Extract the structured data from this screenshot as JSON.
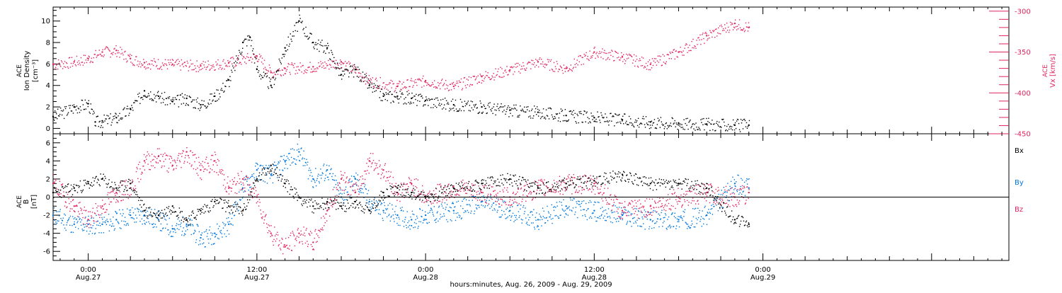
{
  "colors": {
    "black": "#000000",
    "pink": "#e0245e",
    "blue": "#0077dd"
  },
  "x_axis": {
    "label": "hours:minutes, Aug. 26, 2009 - Aug. 29, 2009",
    "start_hour": -2.5,
    "end_hour": 65.5,
    "ticks": [
      {
        "hour": 0,
        "time": "0:00",
        "date": "Aug.27"
      },
      {
        "hour": 12,
        "time": "12:00",
        "date": "Aug.27"
      },
      {
        "hour": 24,
        "time": "0:00",
        "date": "Aug.28"
      },
      {
        "hour": 36,
        "time": "12:00",
        "date": "Aug.28"
      },
      {
        "hour": 48,
        "time": "0:00",
        "date": "Aug.29"
      }
    ]
  },
  "panel1": {
    "ylabel_source": "ACE",
    "ylabel_name": "Ion Density",
    "ylabel_unit": "[cm⁻³]",
    "yticks": [
      "0",
      "2",
      "4",
      "6",
      "8",
      "10"
    ],
    "right_ylabel_source": "ACE",
    "right_ylabel_name": "Vx [km/s]",
    "right_yticks": [
      "-300",
      "-350",
      "-400",
      "-450"
    ]
  },
  "panel2": {
    "ylabel_source": "ACE",
    "ylabel_name": "B",
    "ylabel_unit": "[nT]",
    "yticks": [
      "6",
      "4",
      "2",
      "0",
      "-2",
      "-4",
      "-6"
    ],
    "legend": {
      "bx": "Bx",
      "by": "By",
      "bz": "Bz"
    }
  },
  "chart_data": [
    {
      "type": "scatter",
      "title": "",
      "xlabel": "hours:minutes, Aug. 26, 2009 - Aug. 29, 2009",
      "ylabel": "ACE Ion Density [cm⁻³]",
      "y2label": "ACE Vx [km/s]",
      "ylim": [
        -0.5,
        11.3
      ],
      "y2lim": [
        -450,
        -295
      ],
      "x_unit": "hours since Aug. 27 0:00",
      "series": [
        {
          "name": "Ion Density",
          "axis": "left",
          "color": "#000000",
          "x": [
            -2.5,
            -1,
            0,
            0.5,
            1,
            2,
            3,
            4,
            5,
            6,
            7,
            8,
            9,
            10,
            11,
            11.5,
            12,
            13,
            14,
            15,
            16,
            17,
            18,
            19,
            20,
            21,
            22,
            23,
            24,
            26,
            28,
            30,
            32,
            34,
            36,
            38,
            40,
            42,
            44,
            46,
            47
          ],
          "y": [
            1.1,
            2.0,
            2.3,
            0.6,
            0.7,
            1.0,
            1.8,
            3.5,
            3.0,
            2.5,
            2.8,
            2.2,
            3.0,
            4.5,
            8.0,
            8.5,
            5.5,
            4.0,
            7.5,
            10.0,
            8.0,
            7.5,
            5.0,
            5.5,
            4.0,
            3.0,
            3.0,
            2.8,
            2.6,
            2.2,
            2.0,
            1.7,
            1.5,
            1.2,
            1.0,
            0.8,
            0.6,
            0.5,
            0.4,
            0.3,
            0.3
          ]
        },
        {
          "name": "Vx",
          "axis": "right",
          "color": "#e0245e",
          "x": [
            -2.5,
            -1,
            0,
            1,
            2,
            3,
            4,
            6,
            8,
            10,
            12,
            13,
            14,
            16,
            18,
            20,
            22,
            24,
            26,
            28,
            30,
            32,
            34,
            36,
            38,
            40,
            42,
            44,
            46,
            47
          ],
          "y": [
            -365,
            -362,
            -358,
            -350,
            -348,
            -358,
            -363,
            -365,
            -367,
            -363,
            -355,
            -375,
            -370,
            -368,
            -362,
            -385,
            -392,
            -385,
            -392,
            -380,
            -372,
            -362,
            -370,
            -350,
            -356,
            -365,
            -350,
            -330,
            -315,
            -320
          ]
        }
      ]
    },
    {
      "type": "scatter",
      "title": "",
      "xlabel": "hours:minutes, Aug. 26, 2009 - Aug. 29, 2009",
      "ylabel": "ACE B [nT]",
      "ylim": [
        -7,
        7
      ],
      "x_unit": "hours since Aug. 27 0:00",
      "series": [
        {
          "name": "Bx",
          "color": "#000000",
          "x": [
            -2.5,
            -1,
            0,
            1,
            2,
            3,
            4,
            5,
            6,
            7,
            8,
            9,
            10,
            11,
            12,
            13,
            14,
            15,
            16,
            17,
            18,
            19,
            20,
            21,
            22,
            23,
            24,
            26,
            28,
            30,
            32,
            34,
            36,
            38,
            40,
            42,
            44,
            46,
            47
          ],
          "y": [
            0.5,
            1.0,
            1.5,
            2.0,
            1.0,
            1.5,
            -1.5,
            -2.0,
            -1.0,
            -2.5,
            -1.5,
            -0.5,
            -1.0,
            -1.5,
            2.0,
            3.5,
            1.5,
            0.0,
            -1.0,
            -0.5,
            -1.0,
            -0.5,
            -1.5,
            0.5,
            1.0,
            0.5,
            0.0,
            1.0,
            1.5,
            2.0,
            1.0,
            1.5,
            1.8,
            2.5,
            1.5,
            1.5,
            1.0,
            -2.5,
            -3.0
          ]
        },
        {
          "name": "By",
          "color": "#0077dd",
          "x": [
            -2.5,
            -1,
            0,
            1,
            2,
            3,
            4,
            5,
            6,
            7,
            8,
            9,
            10,
            11,
            12,
            13,
            14,
            15,
            16,
            17,
            18,
            19,
            20,
            21,
            22,
            23,
            24,
            26,
            28,
            30,
            32,
            34,
            36,
            38,
            40,
            42,
            44,
            46,
            47
          ],
          "y": [
            -2.0,
            -3.0,
            -3.0,
            -3.0,
            -2.5,
            -2.0,
            -2.0,
            -2.5,
            -3.5,
            -3.0,
            -4.5,
            -4.0,
            -3.0,
            1.0,
            3.0,
            2.5,
            4.0,
            5.0,
            2.0,
            3.0,
            0.0,
            2.0,
            -0.5,
            -1.5,
            -2.0,
            -2.5,
            -2.0,
            -1.5,
            -0.5,
            -1.5,
            -2.5,
            -1.0,
            -1.5,
            -2.0,
            -2.5,
            -2.5,
            -2.0,
            1.5,
            1.0
          ]
        },
        {
          "name": "Bz",
          "color": "#e0245e",
          "x": [
            -2.5,
            -1,
            0,
            1,
            2,
            3,
            4,
            5,
            6,
            7,
            8,
            9,
            10,
            11,
            12,
            13,
            14,
            15,
            16,
            17,
            18,
            19,
            20,
            21,
            22,
            23,
            24,
            26,
            28,
            30,
            32,
            34,
            36,
            38,
            40,
            42,
            44,
            46,
            47
          ],
          "y": [
            1.5,
            -1.0,
            -2.5,
            -1.0,
            0.5,
            1.0,
            4.0,
            4.5,
            3.5,
            5.0,
            3.0,
            4.0,
            1.0,
            2.0,
            0.0,
            -4.0,
            -5.5,
            -4.0,
            -5.0,
            -1.5,
            2.0,
            0.5,
            4.0,
            3.0,
            0.5,
            1.5,
            0.0,
            1.0,
            0.5,
            0.0,
            1.0,
            1.5,
            1.5,
            -1.5,
            -1.0,
            0.0,
            0.5,
            0.0,
            0.5
          ]
        }
      ]
    }
  ]
}
